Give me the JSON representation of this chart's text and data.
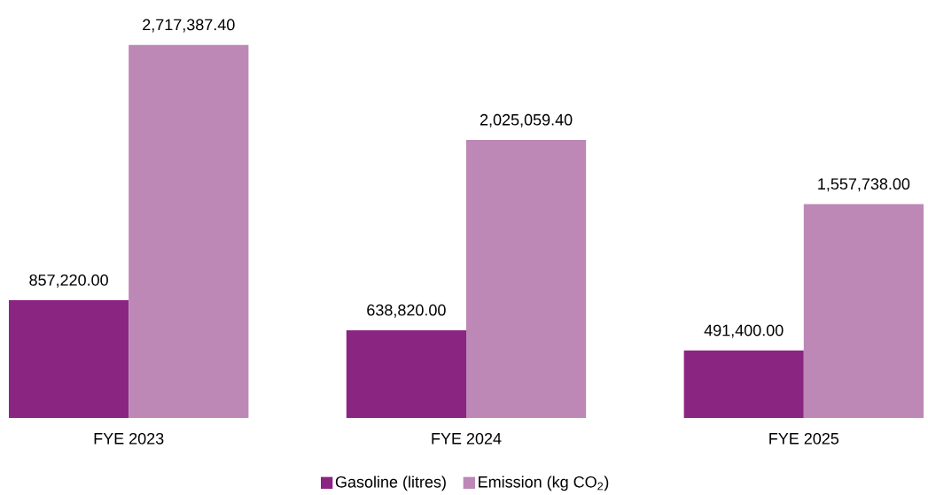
{
  "chart_data": {
    "type": "bar",
    "categories": [
      "FYE 2023",
      "FYE 2024",
      "FYE 2025"
    ],
    "series": [
      {
        "name": "Gasoline (litres)",
        "color": "#8b2582",
        "values": [
          857220.0,
          638820.0,
          491400.0
        ],
        "value_labels": [
          "857,220.00",
          "638,820.00",
          "491,400.00"
        ]
      },
      {
        "name": "Emission (kg CO$_{2}$)",
        "color": "#bd88b5",
        "values": [
          2717387.4,
          2025059.4,
          1557738.0
        ],
        "value_labels": [
          "2,717,387.40",
          "2,025,059.40",
          "1,557,738.00"
        ]
      }
    ],
    "legend": "bottom"
  }
}
